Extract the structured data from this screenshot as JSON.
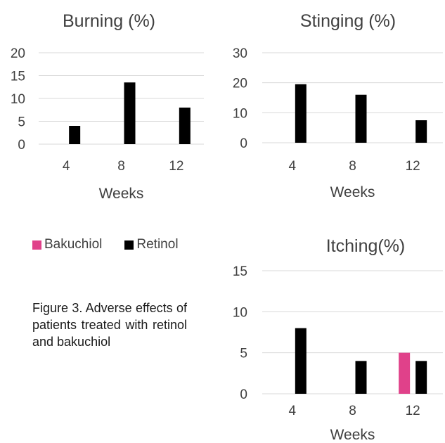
{
  "legend": {
    "items": [
      {
        "label": "Bakuchiol",
        "color": "#e0418a"
      },
      {
        "label": "Retinol",
        "color": "#000000"
      }
    ]
  },
  "caption": "Figure 3. Adverse effects of patients treated with retinol and bakuchiol",
  "chart_data": [
    {
      "type": "bar",
      "title": "Burning (%)",
      "xlabel": "Weeks",
      "ylabel": "",
      "categories": [
        "4",
        "8",
        "12"
      ],
      "ylim": [
        0,
        20
      ],
      "yticks": [
        0,
        5,
        10,
        15,
        20
      ],
      "grid": true,
      "series": [
        {
          "name": "Bakuchiol",
          "color": "#e0418a",
          "values": [
            0,
            0,
            0
          ]
        },
        {
          "name": "Retinol",
          "color": "#000000",
          "values": [
            4,
            13.5,
            8
          ]
        }
      ]
    },
    {
      "type": "bar",
      "title": "Stinging (%)",
      "xlabel": "Weeks",
      "ylabel": "",
      "categories": [
        "4",
        "8",
        "12"
      ],
      "ylim": [
        0,
        30
      ],
      "yticks": [
        0,
        10,
        20,
        30
      ],
      "grid": true,
      "series": [
        {
          "name": "Bakuchiol",
          "color": "#e0418a",
          "values": [
            0,
            0,
            0
          ]
        },
        {
          "name": "Retinol",
          "color": "#000000",
          "values": [
            19.5,
            16,
            7.5
          ]
        }
      ]
    },
    {
      "type": "bar",
      "title": "Itching(%)",
      "xlabel": "Weeks",
      "ylabel": "",
      "categories": [
        "4",
        "8",
        "12"
      ],
      "ylim": [
        0,
        15
      ],
      "yticks": [
        0,
        5,
        10,
        15
      ],
      "grid": true,
      "series": [
        {
          "name": "Bakuchiol",
          "color": "#e0418a",
          "values": [
            0,
            0,
            5
          ]
        },
        {
          "name": "Retinol",
          "color": "#000000",
          "values": [
            8,
            4,
            4
          ]
        }
      ]
    }
  ]
}
